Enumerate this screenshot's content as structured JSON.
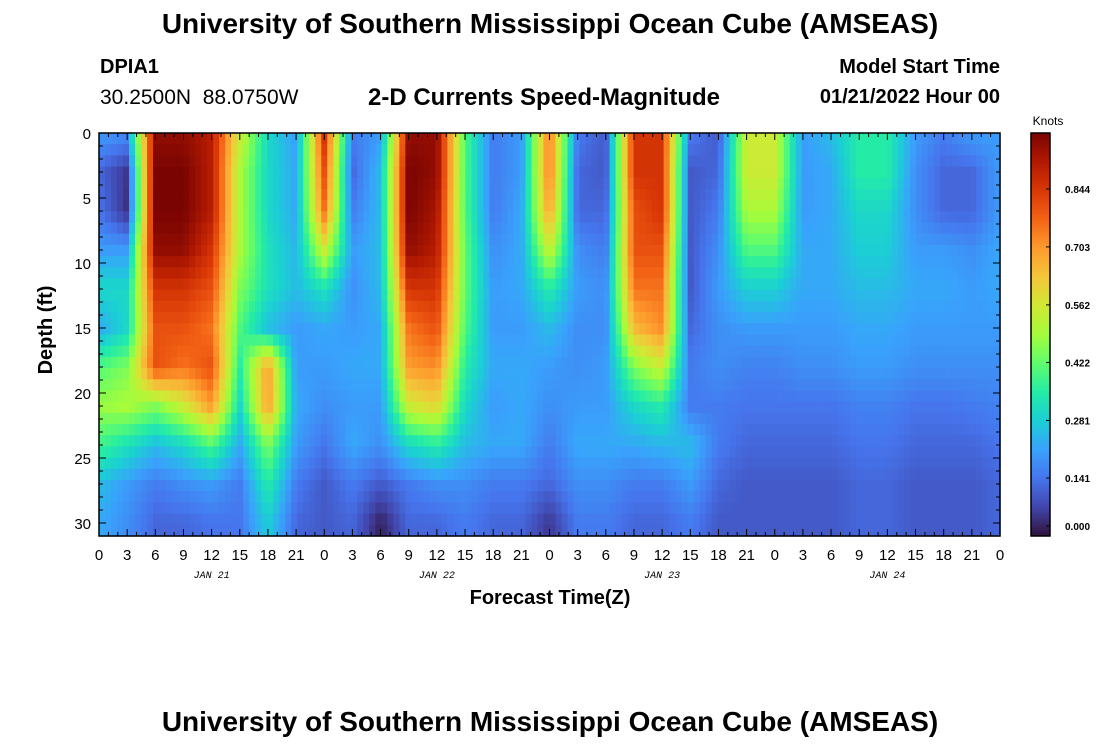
{
  "page": {
    "title": "University of Southern Mississippi Ocean Cube (AMSEAS)",
    "footer_title": "University of Southern Mississippi Ocean Cube (AMSEAS)"
  },
  "header": {
    "station_id": "DPIA1",
    "coordinates": "30.2500N  88.0750W",
    "subtitle": "2-D Currents Speed-Magnitude",
    "model_start_label": "Model Start Time",
    "model_start_value": "01/21/2022 Hour 00"
  },
  "colors": {
    "colormap": [
      "#30123b",
      "#4145ab",
      "#4675ed",
      "#39a2fc",
      "#1bcfd4",
      "#24eca6",
      "#61fc6c",
      "#a4fc3b",
      "#d1e834",
      "#f3c63a",
      "#fe9b2d",
      "#f36315",
      "#d93806",
      "#b11901",
      "#7a0402"
    ]
  },
  "chart_data": {
    "type": "heatmap",
    "title": "2-D Currents Speed-Magnitude",
    "xlabel": "Forecast Time(Z)",
    "ylabel": "Depth (ft)",
    "colorbar_label": "Knots",
    "x_ticks": [
      "0",
      "3",
      "6",
      "9",
      "12",
      "15",
      "18",
      "21",
      "0",
      "3",
      "6",
      "9",
      "12",
      "15",
      "18",
      "21",
      "0",
      "3",
      "6",
      "9",
      "12",
      "15",
      "18",
      "21",
      "0",
      "3",
      "6",
      "9",
      "12",
      "15",
      "18",
      "21",
      "0"
    ],
    "date_labels": [
      "JAN 21",
      "JAN 22",
      "JAN 23",
      "JAN 24"
    ],
    "x_range_hours": [
      0,
      96
    ],
    "y_ticks": [
      0,
      5,
      10,
      15,
      20,
      25,
      30
    ],
    "y_range_ft": [
      0,
      31
    ],
    "y_reversed": true,
    "colorbar_ticks": [
      "0.000",
      "0.141",
      "0.281",
      "0.422",
      "0.562",
      "0.703",
      "0.844"
    ],
    "color_range_knots": [
      0,
      0.98
    ],
    "depths_ft": [
      0,
      3,
      6,
      9,
      12,
      15,
      18,
      21,
      24,
      27,
      30
    ],
    "hours": [
      0,
      3,
      6,
      9,
      12,
      15,
      18,
      21,
      24,
      27,
      30,
      33,
      36,
      39,
      42,
      45,
      48,
      51,
      54,
      57,
      60,
      63,
      66,
      69,
      72,
      75,
      78,
      81,
      84,
      87,
      90,
      93,
      96
    ],
    "speed_knots": [
      [
        0.2,
        0.18,
        0.95,
        0.95,
        0.9,
        0.55,
        0.3,
        0.2,
        0.85,
        0.15,
        0.2,
        0.95,
        0.95,
        0.4,
        0.15,
        0.2,
        0.75,
        0.15,
        0.1,
        0.85,
        0.85,
        0.15,
        0.1,
        0.55,
        0.55,
        0.2,
        0.25,
        0.35,
        0.35,
        0.2,
        0.15,
        0.2,
        0.2
      ],
      [
        0.12,
        0.05,
        0.98,
        0.98,
        0.9,
        0.5,
        0.3,
        0.22,
        0.8,
        0.12,
        0.25,
        0.98,
        0.95,
        0.4,
        0.15,
        0.2,
        0.75,
        0.12,
        0.1,
        0.85,
        0.85,
        0.1,
        0.12,
        0.55,
        0.55,
        0.2,
        0.22,
        0.35,
        0.35,
        0.18,
        0.12,
        0.12,
        0.2
      ],
      [
        0.14,
        0.04,
        0.98,
        0.98,
        0.9,
        0.5,
        0.3,
        0.22,
        0.75,
        0.15,
        0.25,
        0.98,
        0.92,
        0.4,
        0.15,
        0.22,
        0.7,
        0.12,
        0.12,
        0.8,
        0.85,
        0.1,
        0.15,
        0.5,
        0.5,
        0.2,
        0.22,
        0.3,
        0.3,
        0.18,
        0.12,
        0.12,
        0.2
      ],
      [
        0.2,
        0.2,
        0.95,
        0.95,
        0.85,
        0.5,
        0.32,
        0.24,
        0.55,
        0.2,
        0.25,
        0.95,
        0.9,
        0.42,
        0.18,
        0.22,
        0.55,
        0.18,
        0.15,
        0.8,
        0.8,
        0.1,
        0.18,
        0.4,
        0.4,
        0.22,
        0.22,
        0.28,
        0.28,
        0.2,
        0.2,
        0.18,
        0.22
      ],
      [
        0.3,
        0.3,
        0.85,
        0.85,
        0.8,
        0.45,
        0.32,
        0.25,
        0.32,
        0.18,
        0.25,
        0.85,
        0.85,
        0.42,
        0.2,
        0.22,
        0.35,
        0.2,
        0.18,
        0.75,
        0.75,
        0.1,
        0.2,
        0.28,
        0.28,
        0.22,
        0.22,
        0.25,
        0.25,
        0.22,
        0.22,
        0.2,
        0.22
      ],
      [
        0.22,
        0.3,
        0.8,
        0.8,
        0.75,
        0.4,
        0.25,
        0.2,
        0.22,
        0.2,
        0.22,
        0.75,
        0.8,
        0.4,
        0.2,
        0.2,
        0.25,
        0.18,
        0.18,
        0.65,
        0.72,
        0.12,
        0.18,
        0.2,
        0.2,
        0.2,
        0.2,
        0.22,
        0.22,
        0.2,
        0.2,
        0.2,
        0.2
      ],
      [
        0.4,
        0.45,
        0.8,
        0.75,
        0.8,
        0.35,
        0.7,
        0.2,
        0.2,
        0.22,
        0.22,
        0.7,
        0.72,
        0.35,
        0.22,
        0.22,
        0.2,
        0.18,
        0.2,
        0.45,
        0.55,
        0.15,
        0.18,
        0.16,
        0.16,
        0.18,
        0.18,
        0.2,
        0.2,
        0.18,
        0.18,
        0.18,
        0.18
      ],
      [
        0.48,
        0.5,
        0.45,
        0.55,
        0.7,
        0.3,
        0.7,
        0.22,
        0.18,
        0.2,
        0.2,
        0.55,
        0.6,
        0.3,
        0.2,
        0.22,
        0.18,
        0.2,
        0.2,
        0.3,
        0.35,
        0.15,
        0.15,
        0.14,
        0.14,
        0.14,
        0.14,
        0.16,
        0.16,
        0.14,
        0.14,
        0.15,
        0.16
      ],
      [
        0.38,
        0.32,
        0.25,
        0.3,
        0.4,
        0.22,
        0.45,
        0.2,
        0.14,
        0.22,
        0.18,
        0.3,
        0.35,
        0.25,
        0.22,
        0.22,
        0.15,
        0.22,
        0.22,
        0.22,
        0.24,
        0.25,
        0.15,
        0.12,
        0.12,
        0.12,
        0.12,
        0.14,
        0.14,
        0.12,
        0.12,
        0.12,
        0.14
      ],
      [
        0.25,
        0.2,
        0.15,
        0.18,
        0.2,
        0.15,
        0.35,
        0.15,
        0.1,
        0.15,
        0.1,
        0.15,
        0.18,
        0.18,
        0.15,
        0.15,
        0.12,
        0.18,
        0.18,
        0.15,
        0.15,
        0.2,
        0.12,
        0.1,
        0.1,
        0.1,
        0.1,
        0.12,
        0.12,
        0.1,
        0.1,
        0.1,
        0.12
      ],
      [
        0.22,
        0.18,
        0.12,
        0.12,
        0.14,
        0.14,
        0.28,
        0.12,
        0.1,
        0.12,
        0.02,
        0.12,
        0.12,
        0.15,
        0.12,
        0.12,
        0.05,
        0.15,
        0.15,
        0.12,
        0.12,
        0.15,
        0.1,
        0.1,
        0.1,
        0.1,
        0.1,
        0.12,
        0.12,
        0.1,
        0.1,
        0.1,
        0.12
      ]
    ]
  }
}
